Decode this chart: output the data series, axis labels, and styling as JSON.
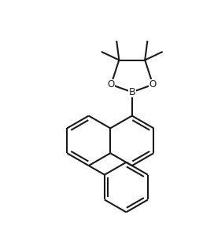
{
  "bg_color": "#ffffff",
  "line_color": "#1a1a1a",
  "line_width": 1.5,
  "font_size_label": 8.5,
  "figsize": [
    2.72,
    2.88
  ],
  "dpi": 100,
  "xlim": [
    -3.8,
    3.0
  ],
  "ylim": [
    -4.2,
    3.8
  ],
  "s": 0.9
}
